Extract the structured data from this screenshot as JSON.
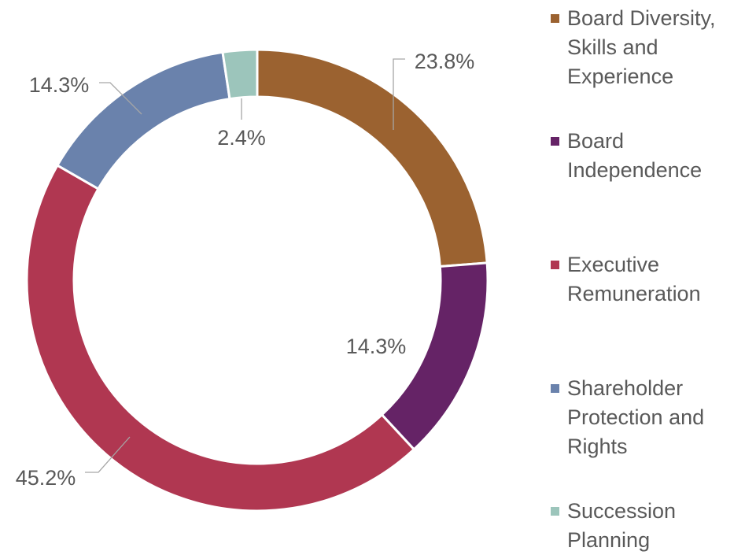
{
  "chart_data": {
    "type": "donut",
    "categories": [
      "Board Diversity, Skills and Experience",
      "Board Independence",
      "Executive Remuneration",
      "Shareholder Protection and Rights",
      "Succession Planning"
    ],
    "values": [
      23.8,
      14.3,
      45.2,
      14.3,
      2.4
    ],
    "value_labels": [
      "23.8%",
      "14.3%",
      "45.2%",
      "14.3%",
      "2.4%"
    ],
    "colors": [
      "#9b6230",
      "#652366",
      "#b03751",
      "#6a82ac",
      "#9cc5bb"
    ],
    "legend": "right"
  }
}
